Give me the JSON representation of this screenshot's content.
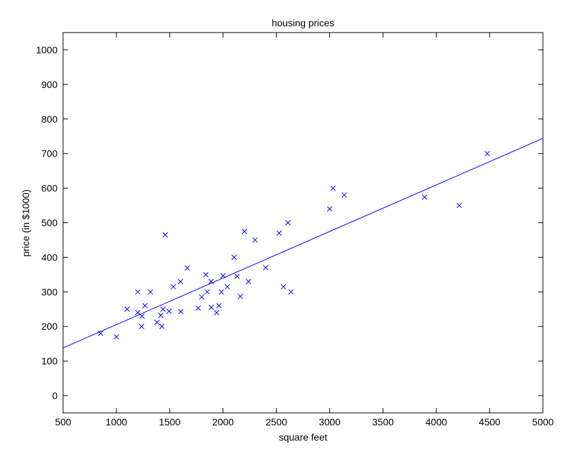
{
  "chart_data": {
    "type": "scatter",
    "title": "housing prices",
    "xlabel": "square feet",
    "ylabel": "price (in $1000)",
    "xlim": [
      500,
      5000
    ],
    "ylim": [
      -50,
      1050
    ],
    "xticks": [
      500,
      1000,
      1500,
      2000,
      2500,
      3000,
      3500,
      4000,
      4500,
      5000
    ],
    "yticks": [
      0,
      100,
      200,
      300,
      400,
      500,
      600,
      700,
      800,
      900,
      1000
    ],
    "grid": false,
    "color": "#0000ff",
    "marker": "x",
    "series": [
      {
        "points": [
          [
            852,
            180
          ],
          [
            1000,
            170
          ],
          [
            1100,
            250
          ],
          [
            1200,
            300
          ],
          [
            1200,
            240
          ],
          [
            1236,
            200
          ],
          [
            1240,
            230
          ],
          [
            1268,
            260
          ],
          [
            1320,
            300
          ],
          [
            1380,
            212
          ],
          [
            1416,
            232
          ],
          [
            1427,
            200
          ],
          [
            1437,
            250
          ],
          [
            1458,
            465
          ],
          [
            1494,
            244
          ],
          [
            1534,
            315
          ],
          [
            1600,
            330
          ],
          [
            1604,
            243
          ],
          [
            1664,
            369
          ],
          [
            1767,
            253
          ],
          [
            1800,
            285
          ],
          [
            1839,
            350
          ],
          [
            1852,
            300
          ],
          [
            1888,
            330
          ],
          [
            1890,
            255
          ],
          [
            1940,
            240
          ],
          [
            1962,
            260
          ],
          [
            1985,
            300
          ],
          [
            2000,
            347
          ],
          [
            2040,
            315
          ],
          [
            2104,
            400
          ],
          [
            2132,
            345
          ],
          [
            2162,
            287
          ],
          [
            2200,
            475
          ],
          [
            2238,
            330
          ],
          [
            2300,
            450
          ],
          [
            2400,
            370
          ],
          [
            2526,
            470
          ],
          [
            2567,
            315
          ],
          [
            2609,
            500
          ],
          [
            2637,
            300
          ],
          [
            3000,
            540
          ],
          [
            3031,
            600
          ],
          [
            3137,
            580
          ],
          [
            3890,
            574
          ],
          [
            4215,
            550
          ],
          [
            4478,
            700
          ]
        ]
      }
    ],
    "fit_line": {
      "x": [
        500,
        5000
      ],
      "y": [
        138,
        744
      ]
    }
  }
}
